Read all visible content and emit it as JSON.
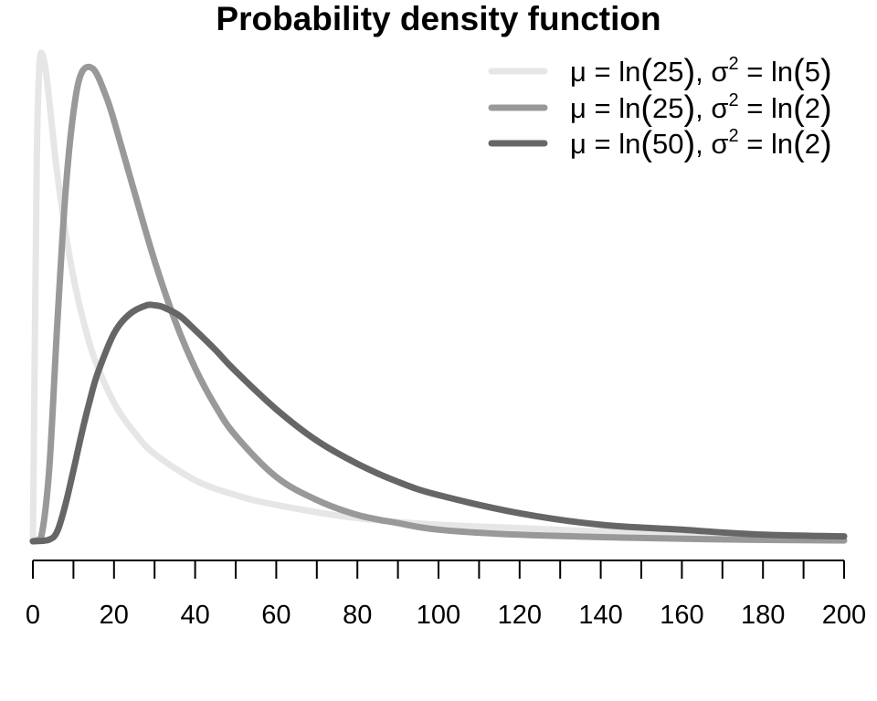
{
  "chart_data": {
    "type": "line",
    "title": "Probability density function",
    "xlabel": "",
    "ylabel": "",
    "xlim": [
      0,
      200
    ],
    "x_ticks": [
      0,
      10,
      20,
      30,
      40,
      50,
      60,
      70,
      80,
      90,
      100,
      110,
      120,
      130,
      140,
      150,
      160,
      170,
      180,
      190,
      200
    ],
    "x_tick_labels": [
      "0",
      "20",
      "40",
      "60",
      "80",
      "100",
      "120",
      "140",
      "160",
      "180",
      "200"
    ],
    "x_tick_label_values": [
      0,
      20,
      40,
      60,
      80,
      100,
      120,
      140,
      160,
      180,
      200
    ],
    "y_axis_shown": false,
    "grid": false,
    "legend_position": "top-right",
    "series": [
      {
        "name": "μ = ln(25), σ² = ln(5)",
        "legend_parts": {
          "mu": "μ = ln",
          "mu_arg": "25",
          "sigma": "σ",
          "sq": "2",
          "eq": " = ln",
          "sigma_arg": "5"
        },
        "color": "#e6e6e6",
        "x": [
          0,
          0.5,
          1,
          1.5,
          2,
          3,
          4,
          5,
          6,
          8,
          10,
          12,
          15,
          20,
          25,
          30,
          40,
          50,
          60,
          80,
          100,
          120,
          150,
          175,
          200
        ],
        "y": [
          0,
          0.0124,
          0.0237,
          0.0283,
          0.0296,
          0.0288,
          0.0268,
          0.0245,
          0.0223,
          0.0188,
          0.016,
          0.0138,
          0.0112,
          0.0084,
          0.0066,
          0.0053,
          0.0037,
          0.0028,
          0.0022,
          0.0014,
          0.001,
          0.0008,
          0.0005,
          0.0004,
          0.0003
        ]
      },
      {
        "name": "μ = ln(25), σ² = ln(2)",
        "legend_parts": {
          "mu": "μ = ln",
          "mu_arg": "25",
          "sigma": "σ",
          "sq": "2",
          "eq": " = ln",
          "sigma_arg": "2"
        },
        "color": "#999999",
        "x": [
          0,
          2,
          4,
          6,
          8,
          10,
          12,
          15,
          18,
          20,
          25,
          30,
          35,
          40,
          45,
          50,
          60,
          70,
          80,
          90,
          100,
          120,
          150,
          175,
          200
        ],
        "y": [
          0,
          0.0002,
          0.0043,
          0.0131,
          0.021,
          0.026,
          0.0284,
          0.0286,
          0.027,
          0.0255,
          0.0212,
          0.017,
          0.0134,
          0.0105,
          0.0082,
          0.0064,
          0.0039,
          0.0025,
          0.0016,
          0.0011,
          0.0007,
          0.0004,
          0.0002,
          0.0001,
          5e-05
        ]
      },
      {
        "name": "μ = ln(50), σ² = ln(2)",
        "legend_parts": {
          "mu": "μ = ln",
          "mu_arg": "50",
          "sigma": "σ",
          "sq": "2",
          "eq": " = ln",
          "sigma_arg": "2"
        },
        "color": "#666666",
        "x": [
          0,
          4,
          6,
          8,
          10,
          12,
          14,
          16,
          20,
          24,
          28,
          30,
          32,
          36,
          40,
          45,
          50,
          60,
          70,
          80,
          90,
          100,
          120,
          140,
          160,
          180,
          200
        ],
        "y": [
          0,
          0.0001,
          0.0006,
          0.0022,
          0.0043,
          0.0065,
          0.0085,
          0.0102,
          0.0126,
          0.0138,
          0.0143,
          0.0143,
          0.0142,
          0.0137,
          0.0128,
          0.0116,
          0.0103,
          0.008,
          0.0061,
          0.0047,
          0.0036,
          0.0028,
          0.0017,
          0.001,
          0.0007,
          0.0004,
          0.0003
        ]
      }
    ]
  }
}
